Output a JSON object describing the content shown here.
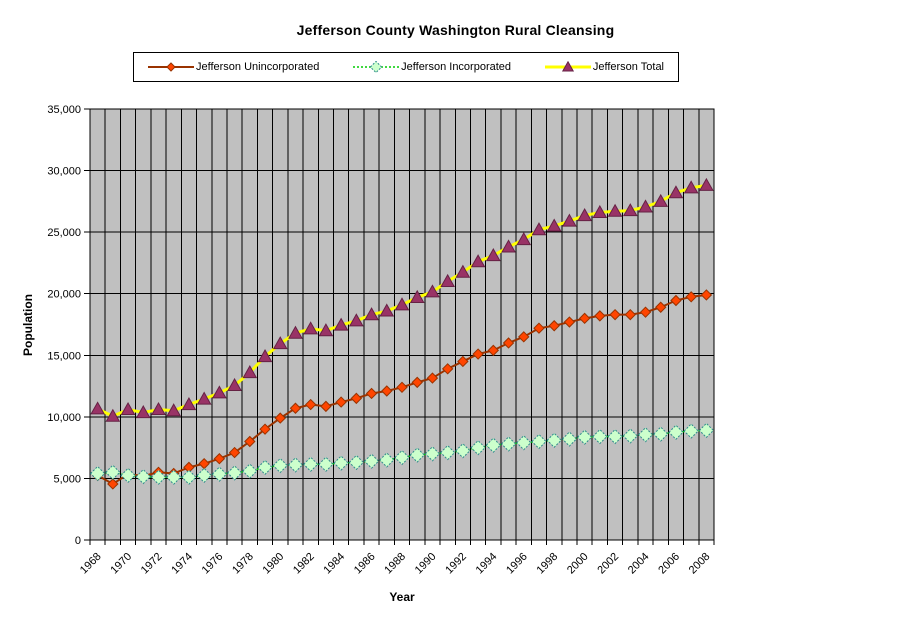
{
  "title": "Jefferson County Washington Rural Cleansing",
  "colors": {
    "plot_background": "#c0c0c0",
    "gridline": "#000000",
    "axis": "#000000",
    "unincorporated_line": "#993300",
    "unincorporated_marker": "#ff4500",
    "incorporated_line": "#00cc00",
    "incorporated_marker": "#ccffcc",
    "incorporated_marker_border": "#2e8b8b",
    "total_line": "#ffff00",
    "total_marker": "#993366"
  },
  "chart_data": {
    "type": "line",
    "title": "Jefferson County Washington Rural Cleansing",
    "xlabel": "Year",
    "ylabel": "Population",
    "ylim": [
      0,
      35000
    ],
    "y_tick_step": 5000,
    "x_label_every": 2,
    "grid": "both",
    "legend_position": "top",
    "plot_bg": "#c0c0c0",
    "x": [
      1968,
      1969,
      1970,
      1971,
      1972,
      1973,
      1974,
      1975,
      1976,
      1977,
      1978,
      1979,
      1980,
      1981,
      1982,
      1983,
      1984,
      1985,
      1986,
      1987,
      1988,
      1989,
      1990,
      1991,
      1992,
      1993,
      1994,
      1995,
      1996,
      1997,
      1998,
      1999,
      2000,
      2001,
      2002,
      2003,
      2004,
      2005,
      2006,
      2007,
      2008
    ],
    "series": [
      {
        "name": "Jefferson Unincorporated",
        "line_color": "#993300",
        "line_width": 2,
        "line_dash": "",
        "marker": "diamond",
        "marker_size": 5,
        "marker_fill": "#ff4500",
        "marker_stroke": "#993300",
        "marker_stroke_dash": "",
        "values": [
          5250,
          4550,
          5350,
          5200,
          5500,
          5400,
          5900,
          6200,
          6600,
          7100,
          8000,
          9000,
          9900,
          10700,
          11000,
          10850,
          11200,
          11500,
          11900,
          12100,
          12400,
          12800,
          13150,
          13900,
          14500,
          15100,
          15400,
          16000,
          16500,
          17200,
          17400,
          17700,
          18000,
          18200,
          18300,
          18300,
          18500,
          18900,
          19450,
          19750,
          19900
        ]
      },
      {
        "name": "Jefferson Incorporated",
        "line_color": "#00cc00",
        "line_width": 1.5,
        "line_dash": "2,2",
        "marker": "diamond",
        "marker_size": 7,
        "marker_fill": "#ccffcc",
        "marker_stroke": "#2e8b8b",
        "marker_stroke_dash": "2,1.5",
        "values": [
          5400,
          5500,
          5250,
          5150,
          5100,
          5100,
          5100,
          5250,
          5350,
          5450,
          5600,
          5900,
          6050,
          6100,
          6150,
          6150,
          6250,
          6300,
          6400,
          6500,
          6700,
          6900,
          7000,
          7100,
          7250,
          7500,
          7700,
          7800,
          7900,
          8000,
          8100,
          8200,
          8350,
          8400,
          8400,
          8450,
          8550,
          8600,
          8750,
          8850,
          8900
        ]
      },
      {
        "name": "Jefferson Total",
        "line_color": "#ffff00",
        "line_width": 3,
        "line_dash": "",
        "marker": "triangle",
        "marker_size": 6.5,
        "marker_fill": "#993366",
        "marker_stroke": "#662244",
        "marker_stroke_dash": "",
        "values": [
          10650,
          10050,
          10600,
          10350,
          10600,
          10500,
          11000,
          11450,
          11950,
          12550,
          13600,
          14900,
          15950,
          16800,
          17150,
          17000,
          17450,
          17800,
          18300,
          18600,
          19100,
          19700,
          20150,
          21000,
          21750,
          22600,
          23100,
          23800,
          24400,
          25200,
          25500,
          25900,
          26350,
          26600,
          26700,
          26750,
          27050,
          27500,
          28200,
          28600,
          28800
        ]
      }
    ]
  }
}
